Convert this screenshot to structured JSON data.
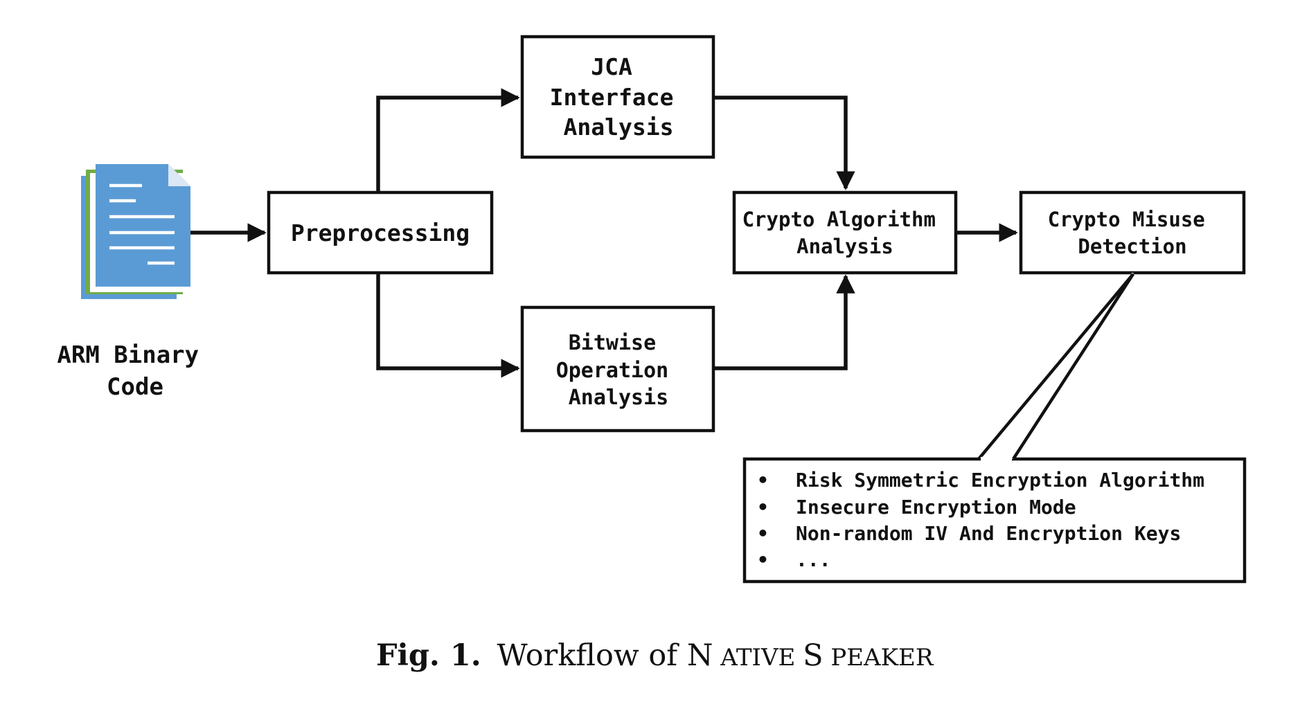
{
  "input": {
    "label_lines": [
      "ARM Binary",
      "Code"
    ]
  },
  "nodes": {
    "preprocessing": {
      "lines": [
        "Preprocessing"
      ]
    },
    "jca": {
      "lines": [
        "JCA",
        "Interface",
        "Analysis"
      ]
    },
    "bitwise": {
      "lines": [
        "Bitwise",
        "Operation",
        "Analysis"
      ]
    },
    "crypto_algorithm": {
      "lines": [
        "Crypto Algorithm",
        "Analysis"
      ]
    },
    "crypto_misuse": {
      "lines": [
        "Crypto Misuse",
        "Detection"
      ]
    }
  },
  "callout": {
    "bullet": "•",
    "items": [
      "Risk Symmetric Encryption Algorithm",
      "Insecure Encryption Mode",
      "Non-random IV And Encryption Keys",
      "..."
    ]
  },
  "caption": {
    "fig": "Fig. 1.",
    "text_pre": "Workflow of ",
    "name_big_1": "N",
    "name_small_1": "ATIVE",
    "name_big_2": "S",
    "name_small_2": "PEAKER"
  },
  "colors": {
    "doc_blue": "#5b9bd5",
    "doc_green": "#70ad47",
    "doc_back_blue": "#5b9bd5",
    "stroke": "#111111"
  },
  "icons": {
    "input_icon": "document-stack-icon"
  }
}
